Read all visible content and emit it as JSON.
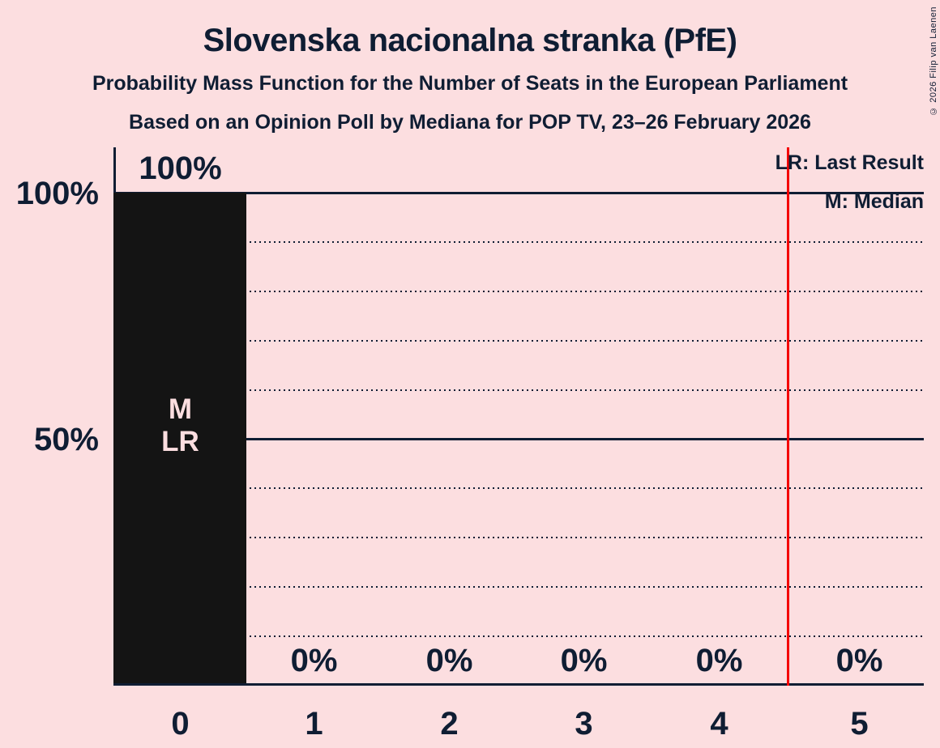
{
  "title": "Slovenska nacionalna stranka (PfE)",
  "subtitle1": "Probability Mass Function for the Number of Seats in the European Parliament",
  "subtitle2": "Based on an Opinion Poll by Mediana for POP TV, 23–26 February 2026",
  "copyright": "© 2026 Filip van Laenen",
  "legend": {
    "lr": "LR: Last Result",
    "m": "M: Median"
  },
  "y_axis": {
    "label_100": "100%",
    "label_50": "50%"
  },
  "colors": {
    "background": "#FCDEE0",
    "ink": "#0F1D33",
    "bar": "#141414",
    "last_result_line": "#F40000",
    "bar_annotation_text": "#FCDEE0"
  },
  "chart_data": {
    "type": "bar",
    "title": "Slovenska nacionalna stranka (PfE)",
    "categories": [
      "0",
      "1",
      "2",
      "3",
      "4",
      "5"
    ],
    "values": [
      100,
      0,
      0,
      0,
      0,
      0
    ],
    "value_labels": [
      "100%",
      "0%",
      "0%",
      "0%",
      "0%",
      "0%"
    ],
    "bar0_markers": [
      "M",
      "LR"
    ],
    "median_seats": 0,
    "last_result_seats": 0,
    "last_result_line_x": 4.5,
    "ylim": [
      0,
      100
    ],
    "y_tick_labels": [
      "100%",
      "50%"
    ],
    "grid": "dotted horizontal lines every 10%, solid at 50% and 100%",
    "legend_position": "top-right"
  }
}
